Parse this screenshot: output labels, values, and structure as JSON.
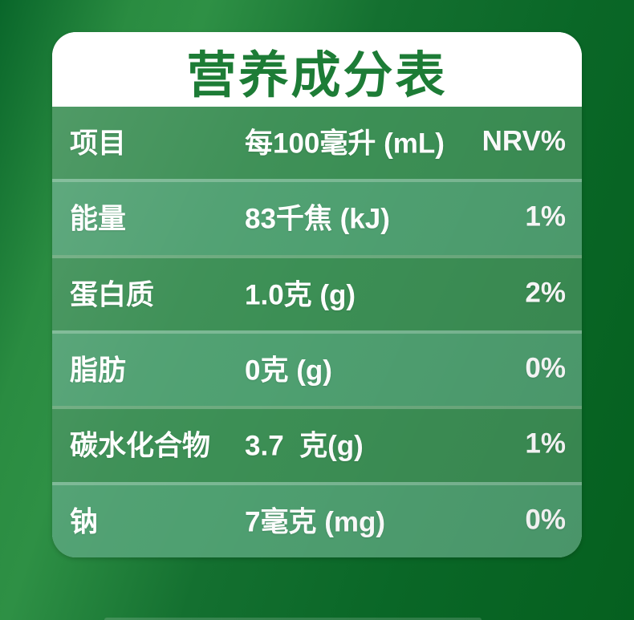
{
  "title": "营养成分表",
  "table": {
    "rows": [
      {
        "label": "项目",
        "amount": "每100毫升 (mL)",
        "nrv": "NRV%",
        "is_header": true
      },
      {
        "label": "能量",
        "amount": "83千焦 (kJ)",
        "nrv": "1%"
      },
      {
        "label": "蛋白质",
        "amount": "1.0克 (g)",
        "nrv": "2%"
      },
      {
        "label": "脂肪",
        "amount": "0克 (g)",
        "nrv": "0%"
      },
      {
        "label": "碳水化合物",
        "amount": "3.7  克(g)",
        "nrv": "1%"
      },
      {
        "label": "钠",
        "amount": "7毫克 (mg)",
        "nrv": "0%"
      }
    ]
  },
  "colors": {
    "background_dark_green": "#09662a",
    "background_highlight_green": "#2e9045",
    "card_white": "#ffffff",
    "title_green": "#1d7c36",
    "row_dark_green": "#3c8f55",
    "row_light_green": "#4fa071",
    "row_separator": "rgba(255,255,255,0.25)",
    "text_white": "#ffffff"
  }
}
